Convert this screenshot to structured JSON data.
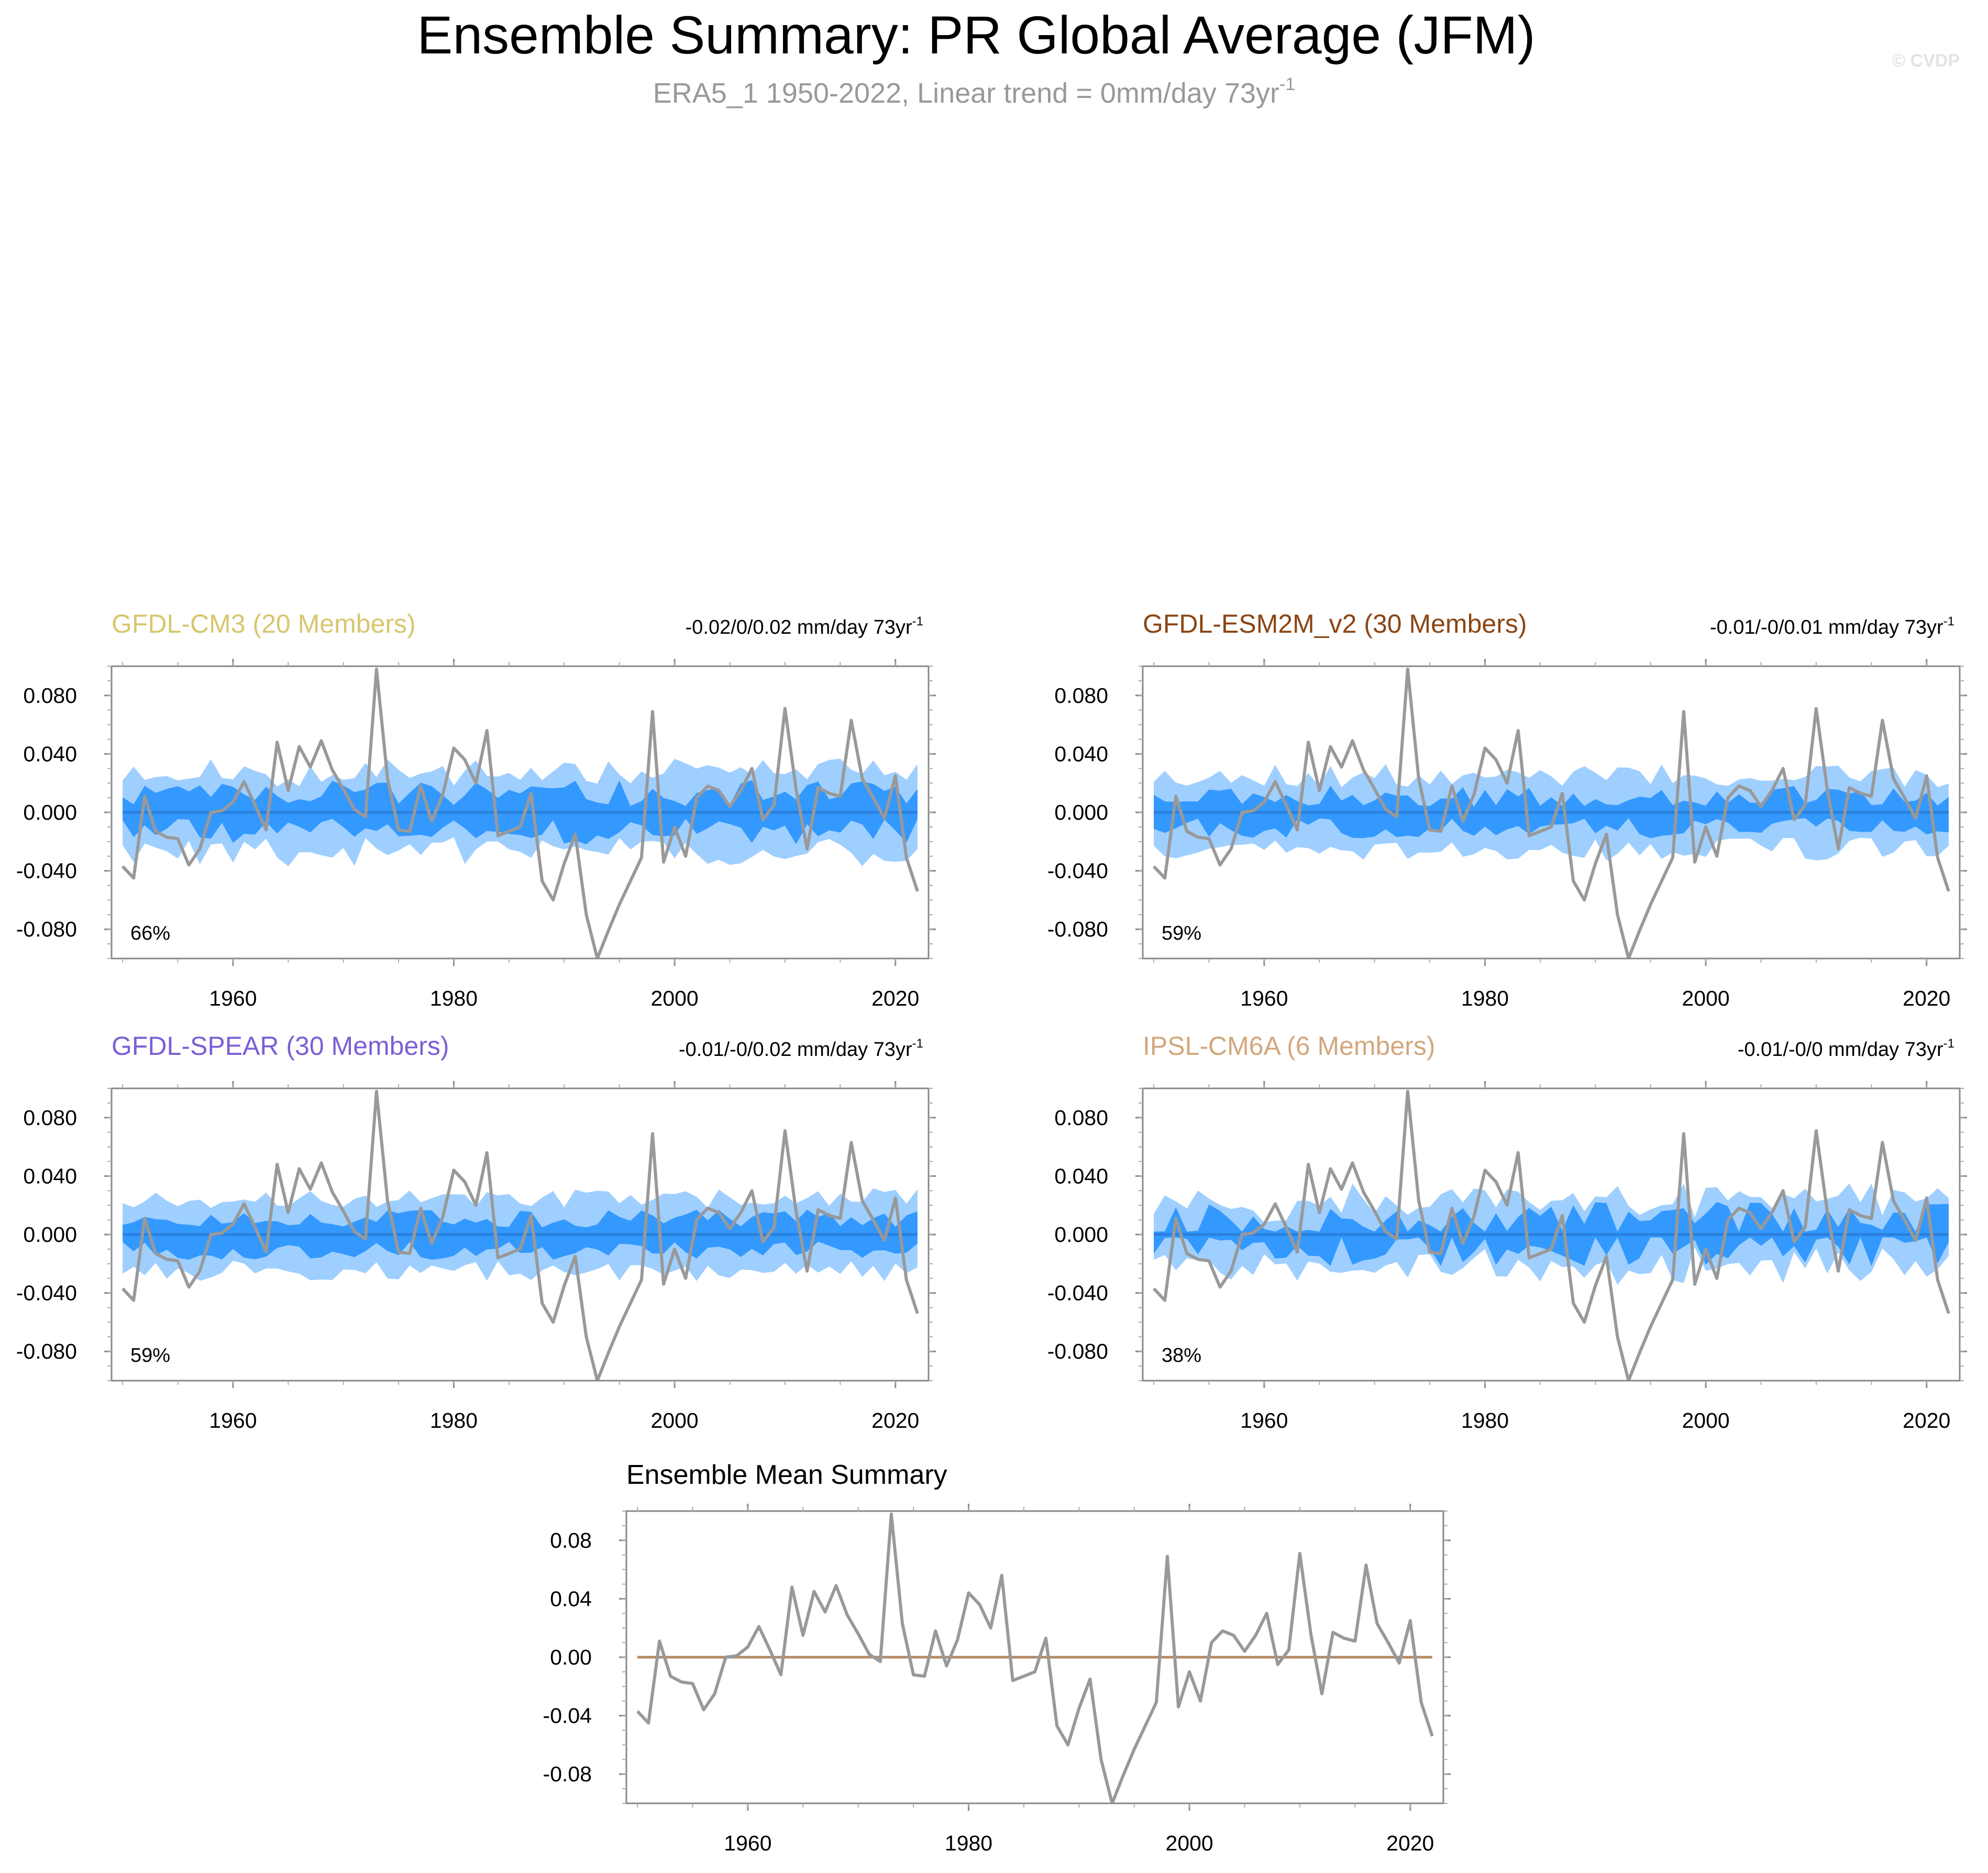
{
  "page": {
    "title": "Ensemble Summary: PR Global Average (JFM)",
    "subtitle_main": "ERA5_1 1950-2022, Linear trend = 0mm/day 73yr",
    "subtitle_sup": "-1",
    "watermark": "© CVDP"
  },
  "colors": {
    "observed_line": "#999999",
    "band_outer": "#9fcfff",
    "band_inner": "#3399ff",
    "ensemble_mean_line": "#2a7fdc",
    "mean_summary_zero_line": "#b48a64",
    "frame": "#888888"
  },
  "observed": {
    "name": "ERA5_1",
    "years": [
      1950,
      1951,
      1952,
      1953,
      1954,
      1955,
      1956,
      1957,
      1958,
      1959,
      1960,
      1961,
      1962,
      1963,
      1964,
      1965,
      1966,
      1967,
      1968,
      1969,
      1970,
      1971,
      1972,
      1973,
      1974,
      1975,
      1976,
      1977,
      1978,
      1979,
      1980,
      1981,
      1982,
      1983,
      1984,
      1985,
      1986,
      1987,
      1988,
      1989,
      1990,
      1991,
      1992,
      1993,
      1994,
      1995,
      1996,
      1997,
      1998,
      1999,
      2000,
      2001,
      2002,
      2003,
      2004,
      2005,
      2006,
      2007,
      2008,
      2009,
      2010,
      2011,
      2012,
      2013,
      2014,
      2015,
      2016,
      2017,
      2018,
      2019,
      2020,
      2021,
      2022
    ],
    "values": [
      -0.037,
      -0.045,
      0.011,
      -0.013,
      -0.017,
      -0.018,
      -0.036,
      -0.025,
      0.0,
      0.001,
      0.007,
      0.021,
      0.005,
      -0.012,
      0.048,
      0.015,
      0.045,
      0.031,
      0.049,
      0.029,
      0.016,
      0.002,
      -0.003,
      0.098,
      0.023,
      -0.012,
      -0.013,
      0.018,
      -0.006,
      0.012,
      0.044,
      0.036,
      0.02,
      0.056,
      -0.016,
      -0.013,
      -0.01,
      0.013,
      -0.047,
      -0.06,
      -0.035,
      -0.015,
      -0.07,
      -0.1,
      -0.081,
      -0.063,
      -0.047,
      -0.031,
      0.069,
      -0.034,
      -0.01,
      -0.03,
      0.01,
      0.018,
      0.015,
      0.004,
      0.015,
      0.03,
      -0.005,
      0.005,
      0.071,
      0.016,
      -0.025,
      0.017,
      0.013,
      0.011,
      0.063,
      0.023,
      0.01,
      -0.004,
      0.025,
      -0.031,
      -0.054
    ]
  },
  "chart_data": [
    {
      "type": "area",
      "id": "gfdl-cm3",
      "title": "GFDL-CM3 (20 Members)",
      "title_color": "#d7c76e",
      "trend_label_main": "-0.02/0/0.02 mm/day 73yr",
      "trend_label_sup": "-1",
      "percent_label": "66%",
      "xlim": [
        1949,
        2023
      ],
      "ylim": [
        -0.1,
        0.1
      ],
      "yticks": [
        "-0.080",
        "-0.040",
        "0.000",
        "0.040",
        "0.080"
      ],
      "ytick_values": [
        -0.08,
        -0.04,
        0.0,
        0.04,
        0.08
      ],
      "xticks": [
        "1960",
        "1980",
        "2000",
        "2020"
      ],
      "xtick_values": [
        1960,
        1980,
        2000,
        2020
      ],
      "series": [
        {
          "role": "observed",
          "ref": "observed"
        }
      ],
      "ensemble_mean": 0.0,
      "band": {
        "outer_base": 0.027,
        "inner_base": 0.013,
        "variability": 0.01,
        "seed": 11
      }
    },
    {
      "type": "area",
      "id": "gfdl-esm2m-v2",
      "title": "GFDL-ESM2M_v2 (30 Members)",
      "title_color": "#8b4513",
      "trend_label_main": "-0.01/-0/0.01 mm/day 73yr",
      "trend_label_sup": "-1",
      "percent_label": "59%",
      "xlim": [
        1949,
        2023
      ],
      "ylim": [
        -0.1,
        0.1
      ],
      "yticks": [
        "-0.080",
        "-0.040",
        "0.000",
        "0.040",
        "0.080"
      ],
      "ytick_values": [
        -0.08,
        -0.04,
        0.0,
        0.04,
        0.08
      ],
      "xticks": [
        "1960",
        "1980",
        "2000",
        "2020"
      ],
      "xtick_values": [
        1960,
        1980,
        2000,
        2020
      ],
      "series": [
        {
          "role": "observed",
          "ref": "observed"
        }
      ],
      "ensemble_mean": 0.0,
      "band": {
        "outer_base": 0.025,
        "inner_base": 0.011,
        "variability": 0.008,
        "seed": 23
      }
    },
    {
      "type": "area",
      "id": "gfdl-spear",
      "title": "GFDL-SPEAR (30 Members)",
      "title_color": "#7b5fd6",
      "trend_label_main": "-0.01/-0/0.02 mm/day 73yr",
      "trend_label_sup": "-1",
      "percent_label": "59%",
      "xlim": [
        1949,
        2023
      ],
      "ylim": [
        -0.1,
        0.1
      ],
      "yticks": [
        "-0.080",
        "-0.040",
        "0.000",
        "0.040",
        "0.080"
      ],
      "ytick_values": [
        -0.08,
        -0.04,
        0.0,
        0.04,
        0.08
      ],
      "xticks": [
        "1960",
        "1980",
        "2000",
        "2020"
      ],
      "xtick_values": [
        1960,
        1980,
        2000,
        2020
      ],
      "series": [
        {
          "role": "observed",
          "ref": "observed"
        }
      ],
      "ensemble_mean": 0.0,
      "band": {
        "outer_base": 0.025,
        "inner_base": 0.011,
        "variability": 0.007,
        "seed": 37
      }
    },
    {
      "type": "area",
      "id": "ipsl-cm6a",
      "title": "IPSL-CM6A (6 Members)",
      "title_color": "#d2a77d",
      "trend_label_main": "-0.01/-0/0 mm/day 73yr",
      "trend_label_sup": "-1",
      "percent_label": "38%",
      "xlim": [
        1949,
        2023
      ],
      "ylim": [
        -0.1,
        0.1
      ],
      "yticks": [
        "-0.080",
        "-0.040",
        "0.000",
        "0.040",
        "0.080"
      ],
      "ytick_values": [
        -0.08,
        -0.04,
        0.0,
        0.04,
        0.08
      ],
      "xticks": [
        "1960",
        "1980",
        "2000",
        "2020"
      ],
      "xtick_values": [
        1960,
        1980,
        2000,
        2020
      ],
      "series": [
        {
          "role": "observed",
          "ref": "observed"
        }
      ],
      "ensemble_mean": 0.0,
      "band": {
        "outer_base": 0.021,
        "inner_base": 0.01,
        "variability": 0.014,
        "seed": 53
      }
    },
    {
      "type": "line",
      "id": "ensemble-mean-summary",
      "title": "Ensemble Mean Summary",
      "title_color": "#000000",
      "xlim": [
        1949,
        2023
      ],
      "ylim": [
        -0.1,
        0.1
      ],
      "yticks": [
        "-0.08",
        "-0.04",
        "0.00",
        "0.04",
        "0.08"
      ],
      "ytick_values": [
        -0.08,
        -0.04,
        0.0,
        0.04,
        0.08
      ],
      "xticks": [
        "1960",
        "1980",
        "2000",
        "2020"
      ],
      "xtick_values": [
        1960,
        1980,
        2000,
        2020
      ],
      "series": [
        {
          "role": "observed",
          "ref": "observed"
        }
      ],
      "ensemble_mean": 0.0
    }
  ]
}
